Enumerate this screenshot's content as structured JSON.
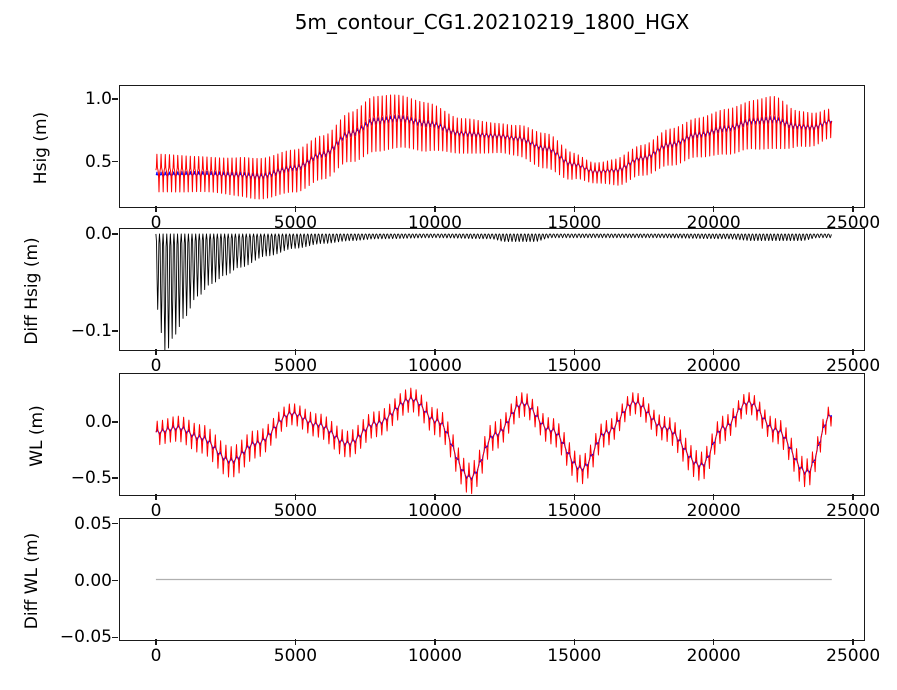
{
  "chart_data": {
    "type": "line",
    "title": "5m_contour_CG1.20210219_1800_HGX",
    "xlabel": "",
    "grid": false,
    "legend": "none",
    "x_axis": {
      "lim": [
        -1290,
        25460
      ],
      "ticks": [
        0,
        5000,
        10000,
        15000,
        20000,
        25000
      ],
      "tick_labels": [
        "0",
        "5000",
        "10000",
        "15000",
        "20000",
        "25000"
      ],
      "data_end": 24300
    },
    "subplots": [
      {
        "id": "hsig",
        "ylabel": "Hsig (m)",
        "ylim": [
          0.121,
          1.105
        ],
        "yticks": [
          {
            "value": 0.5,
            "label": "0.5"
          },
          {
            "value": 1.0,
            "label": "1.0"
          }
        ],
        "series": [
          {
            "name": "hsig-blue",
            "color": "#0000ff",
            "stroke_width": 1.0,
            "type": "modulated",
            "osc_period": 150,
            "osc_sharpness": 5,
            "down_bias": 1.0,
            "x_end": 24300,
            "amp": [
              [
                0,
                0.025
              ],
              [
                24300,
                0.025
              ]
            ],
            "mean": [
              [
                0,
                0.38
              ],
              [
                1500,
                0.385
              ],
              [
                3000,
                0.38
              ],
              [
                3700,
                0.37
              ],
              [
                5000,
                0.44
              ],
              [
                6000,
                0.55
              ],
              [
                7000,
                0.72
              ],
              [
                7900,
                0.82
              ],
              [
                8700,
                0.84
              ],
              [
                9800,
                0.8
              ],
              [
                11000,
                0.72
              ],
              [
                12300,
                0.7
              ],
              [
                13000,
                0.68
              ],
              [
                14000,
                0.6
              ],
              [
                15000,
                0.47
              ],
              [
                15800,
                0.41
              ],
              [
                16500,
                0.42
              ],
              [
                17500,
                0.52
              ],
              [
                18500,
                0.63
              ],
              [
                19500,
                0.71
              ],
              [
                20500,
                0.76
              ],
              [
                21500,
                0.82
              ],
              [
                22200,
                0.83
              ],
              [
                23000,
                0.78
              ],
              [
                23600,
                0.77
              ],
              [
                24300,
                0.82
              ]
            ]
          },
          {
            "name": "hsig-red",
            "color": "#ff0000",
            "stroke_width": 1.0,
            "type": "modulated",
            "osc_period": 150,
            "osc_sharpness": 5,
            "down_bias": 1.35,
            "x_end": 24300,
            "amp": [
              [
                0,
                0.13
              ],
              [
                2000,
                0.12
              ],
              [
                3700,
                0.14
              ],
              [
                6000,
                0.15
              ],
              [
                8000,
                0.19
              ],
              [
                9500,
                0.17
              ],
              [
                11000,
                0.12
              ],
              [
                12500,
                0.1
              ],
              [
                14000,
                0.12
              ],
              [
                15800,
                0.07
              ],
              [
                17000,
                0.1
              ],
              [
                19000,
                0.13
              ],
              [
                21000,
                0.16
              ],
              [
                22200,
                0.18
              ],
              [
                23200,
                0.12
              ],
              [
                24300,
                0.1
              ]
            ],
            "mean": [
              [
                0,
                0.42
              ],
              [
                1500,
                0.41
              ],
              [
                3000,
                0.39
              ],
              [
                3700,
                0.375
              ],
              [
                5000,
                0.44
              ],
              [
                6000,
                0.55
              ],
              [
                7000,
                0.72
              ],
              [
                7900,
                0.83
              ],
              [
                8700,
                0.85
              ],
              [
                9800,
                0.8
              ],
              [
                11000,
                0.72
              ],
              [
                12300,
                0.7
              ],
              [
                13000,
                0.68
              ],
              [
                14000,
                0.6
              ],
              [
                15000,
                0.47
              ],
              [
                15800,
                0.41
              ],
              [
                16500,
                0.42
              ],
              [
                17500,
                0.52
              ],
              [
                18500,
                0.63
              ],
              [
                19500,
                0.71
              ],
              [
                20500,
                0.76
              ],
              [
                21500,
                0.82
              ],
              [
                22200,
                0.84
              ],
              [
                23000,
                0.78
              ],
              [
                23600,
                0.77
              ],
              [
                24300,
                0.82
              ]
            ]
          }
        ]
      },
      {
        "id": "diff-hsig",
        "ylabel": "Diff Hsig (m)",
        "ylim": [
          -0.1215,
          0.0052
        ],
        "yticks": [
          {
            "value": 0.0,
            "label": "0.0"
          },
          {
            "value": -0.1,
            "label": "−0.1"
          }
        ],
        "series": [
          {
            "name": "diff-hsig-black",
            "color": "#000000",
            "stroke_width": 0.9,
            "type": "decay-spikes",
            "osc_period": 130,
            "x_end": 24300,
            "depth": [
              [
                0,
                0.075
              ],
              [
                350,
                0.123
              ],
              [
                700,
                0.105
              ],
              [
                1000,
                0.088
              ],
              [
                1500,
                0.065
              ],
              [
                2000,
                0.052
              ],
              [
                2500,
                0.043
              ],
              [
                3000,
                0.035
              ],
              [
                4000,
                0.023
              ],
              [
                5000,
                0.015
              ],
              [
                6000,
                0.01
              ],
              [
                7000,
                0.007
              ],
              [
                8000,
                0.005
              ],
              [
                10000,
                0.004
              ],
              [
                12000,
                0.005
              ],
              [
                12600,
                0.008
              ],
              [
                13600,
                0.008
              ],
              [
                14200,
                0.004
              ],
              [
                16000,
                0.004
              ],
              [
                18000,
                0.004
              ],
              [
                20500,
                0.005
              ],
              [
                21500,
                0.007
              ],
              [
                23200,
                0.007
              ],
              [
                23800,
                0.004
              ],
              [
                24300,
                0.004
              ]
            ]
          }
        ]
      },
      {
        "id": "wl",
        "ylabel": "WL (m)",
        "ylim": [
          -0.669,
          0.428
        ],
        "yticks": [
          {
            "value": 0.0,
            "label": "0.0"
          },
          {
            "value": -0.5,
            "label": "−0.5"
          }
        ],
        "series": [
          {
            "name": "wl-blue",
            "color": "#0000ff",
            "stroke_width": 1.0,
            "type": "modulated",
            "osc_period": 190,
            "osc_sharpness": 5,
            "down_bias": 1.0,
            "x_end": 24300,
            "amp": [
              [
                0,
                0.03
              ],
              [
                24300,
                0.03
              ]
            ],
            "mean": [
              [
                0,
                -0.1
              ],
              [
                800,
                -0.06
              ],
              [
                1600,
                -0.15
              ],
              [
                2700,
                -0.36
              ],
              [
                3600,
                -0.2
              ],
              [
                4900,
                0.07
              ],
              [
                5800,
                -0.03
              ],
              [
                6900,
                -0.2
              ],
              [
                7900,
                -0.02
              ],
              [
                9200,
                0.2
              ],
              [
                10100,
                0.0
              ],
              [
                11300,
                -0.51
              ],
              [
                12200,
                -0.12
              ],
              [
                13200,
                0.16
              ],
              [
                14200,
                -0.08
              ],
              [
                15300,
                -0.43
              ],
              [
                16200,
                -0.1
              ],
              [
                17200,
                0.17
              ],
              [
                18300,
                -0.06
              ],
              [
                19600,
                -0.4
              ],
              [
                20400,
                -0.06
              ],
              [
                21300,
                0.17
              ],
              [
                22300,
                -0.08
              ],
              [
                23400,
                -0.46
              ],
              [
                24300,
                0.06
              ]
            ]
          },
          {
            "name": "wl-red",
            "color": "#ff0000",
            "stroke_width": 1.0,
            "type": "modulated",
            "osc_period": 190,
            "osc_sharpness": 5,
            "down_bias": 1.15,
            "x_end": 24300,
            "amp": [
              [
                0,
                0.1
              ],
              [
                2700,
                0.13
              ],
              [
                4900,
                0.09
              ],
              [
                6900,
                0.11
              ],
              [
                9200,
                0.1
              ],
              [
                11300,
                0.13
              ],
              [
                13200,
                0.1
              ],
              [
                15300,
                0.12
              ],
              [
                17200,
                0.09
              ],
              [
                19600,
                0.12
              ],
              [
                21300,
                0.09
              ],
              [
                23400,
                0.12
              ],
              [
                24300,
                0.09
              ]
            ],
            "mean": [
              [
                0,
                -0.1
              ],
              [
                800,
                -0.06
              ],
              [
                1600,
                -0.15
              ],
              [
                2700,
                -0.36
              ],
              [
                3600,
                -0.2
              ],
              [
                4900,
                0.07
              ],
              [
                5800,
                -0.03
              ],
              [
                6900,
                -0.2
              ],
              [
                7900,
                -0.02
              ],
              [
                9200,
                0.2
              ],
              [
                10100,
                0.0
              ],
              [
                11300,
                -0.51
              ],
              [
                12200,
                -0.12
              ],
              [
                13200,
                0.16
              ],
              [
                14200,
                -0.08
              ],
              [
                15300,
                -0.43
              ],
              [
                16200,
                -0.1
              ],
              [
                17200,
                0.17
              ],
              [
                18300,
                -0.06
              ],
              [
                19600,
                -0.4
              ],
              [
                20400,
                -0.06
              ],
              [
                21300,
                0.17
              ],
              [
                22300,
                -0.08
              ],
              [
                23400,
                -0.46
              ],
              [
                24300,
                0.06
              ]
            ]
          }
        ]
      },
      {
        "id": "diff-wl",
        "ylabel": "Diff WL (m)",
        "ylim": [
          -0.0541,
          0.0541
        ],
        "yticks": [
          {
            "value": 0.05,
            "label": "0.05"
          },
          {
            "value": 0.0,
            "label": "0.00"
          },
          {
            "value": -0.05,
            "label": "−0.05"
          }
        ],
        "series": [
          {
            "name": "diff-wl-gray",
            "color": "#b0b0b0",
            "stroke_width": 1.3,
            "type": "flat",
            "value": 0.0,
            "x_start": 0,
            "x_end": 24300
          }
        ]
      }
    ],
    "colors": {
      "spine": "#1a1a1a",
      "background": "#ffffff",
      "text": "#000000"
    }
  }
}
